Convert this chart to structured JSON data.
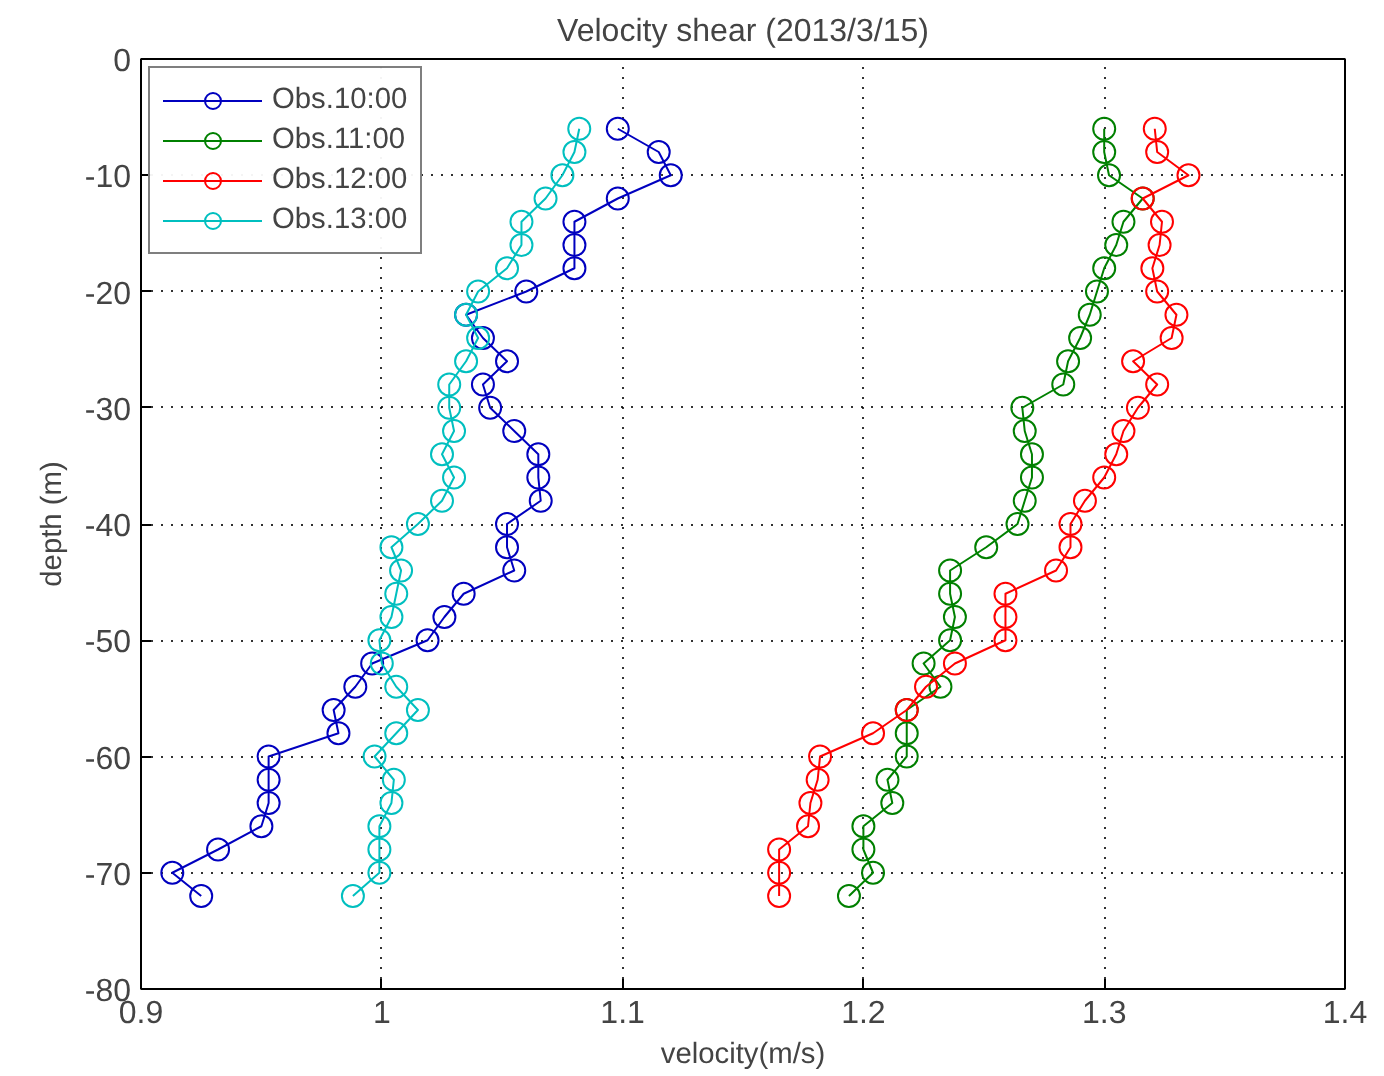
{
  "chart_data": {
    "type": "line",
    "title": "Velocity shear (2013/3/15)",
    "xlabel": "velocity(m/s)",
    "ylabel": "depth (m)",
    "xlim": [
      0.9,
      1.4
    ],
    "xticks": [
      0.9,
      1,
      1.1,
      1.2,
      1.3,
      1.4
    ],
    "ylim": [
      -80,
      0
    ],
    "yticks": [
      -80,
      -70,
      -60,
      -50,
      -40,
      -30,
      -20,
      -10,
      0
    ],
    "grid": true,
    "legend": "top left",
    "marker": "circle",
    "line_style": "solid",
    "series": [
      {
        "name": "Obs.10:00",
        "color": "#0000bf",
        "x": [
          1.098,
          1.115,
          1.12,
          1.098,
          1.08,
          1.08,
          1.08,
          1.06,
          1.035,
          1.042,
          1.052,
          1.042,
          1.045,
          1.055,
          1.065,
          1.065,
          1.066,
          1.052,
          1.052,
          1.055,
          1.034,
          1.026,
          1.019,
          0.996,
          0.989,
          0.98,
          0.982,
          0.953,
          0.953,
          0.953,
          0.95,
          0.932,
          0.913,
          0.925
        ],
        "values": [
          -6,
          -8,
          -10,
          -12,
          -14,
          -16,
          -18,
          -20,
          -22,
          -24,
          -26,
          -28,
          -30,
          -32,
          -34,
          -36,
          -38,
          -40,
          -42,
          -44,
          -46,
          -48,
          -50,
          -52,
          -54,
          -56,
          -58,
          -60,
          -62,
          -64,
          -66,
          -68,
          -70,
          -72
        ]
      },
      {
        "name": "Obs.11:00",
        "color": "#008000",
        "x": [
          1.3,
          1.3,
          1.302,
          1.316,
          1.308,
          1.305,
          1.3,
          1.297,
          1.294,
          1.29,
          1.285,
          1.283,
          1.266,
          1.267,
          1.27,
          1.27,
          1.267,
          1.264,
          1.251,
          1.236,
          1.236,
          1.238,
          1.236,
          1.225,
          1.232,
          1.218,
          1.218,
          1.218,
          1.21,
          1.212,
          1.2,
          1.2,
          1.204,
          1.194
        ],
        "values": [
          -6,
          -8,
          -10,
          -12,
          -14,
          -16,
          -18,
          -20,
          -22,
          -24,
          -26,
          -28,
          -30,
          -32,
          -34,
          -36,
          -38,
          -40,
          -42,
          -44,
          -46,
          -48,
          -50,
          -52,
          -54,
          -56,
          -58,
          -60,
          -62,
          -64,
          -66,
          -68,
          -70,
          -72
        ]
      },
      {
        "name": "Obs.12:00",
        "color": "#ff0000",
        "x": [
          1.321,
          1.322,
          1.335,
          1.316,
          1.324,
          1.323,
          1.32,
          1.322,
          1.33,
          1.328,
          1.312,
          1.322,
          1.314,
          1.308,
          1.305,
          1.3,
          1.292,
          1.286,
          1.286,
          1.28,
          1.259,
          1.259,
          1.259,
          1.238,
          1.226,
          1.218,
          1.204,
          1.182,
          1.181,
          1.178,
          1.177,
          1.165,
          1.165,
          1.165
        ],
        "values": [
          -6,
          -8,
          -10,
          -12,
          -14,
          -16,
          -18,
          -20,
          -22,
          -24,
          -26,
          -28,
          -30,
          -32,
          -34,
          -36,
          -38,
          -40,
          -42,
          -44,
          -46,
          -48,
          -50,
          -52,
          -54,
          -56,
          -58,
          -60,
          -62,
          -64,
          -66,
          -68,
          -70,
          -72
        ]
      },
      {
        "name": "Obs.13:00",
        "color": "#00bfbf",
        "x": [
          1.082,
          1.08,
          1.075,
          1.068,
          1.058,
          1.058,
          1.052,
          1.04,
          1.035,
          1.04,
          1.035,
          1.028,
          1.028,
          1.03,
          1.025,
          1.03,
          1.025,
          1.015,
          1.004,
          1.008,
          1.006,
          1.004,
          0.999,
          1.0,
          1.006,
          1.015,
          1.006,
          0.997,
          1.005,
          1.004,
          0.999,
          0.999,
          0.999,
          0.988
        ],
        "values": [
          -6,
          -8,
          -10,
          -12,
          -14,
          -16,
          -18,
          -20,
          -22,
          -24,
          -26,
          -28,
          -30,
          -32,
          -34,
          -36,
          -38,
          -40,
          -42,
          -44,
          -46,
          -48,
          -50,
          -52,
          -54,
          -56,
          -58,
          -60,
          -62,
          -64,
          -66,
          -68,
          -70,
          -72
        ]
      }
    ]
  }
}
